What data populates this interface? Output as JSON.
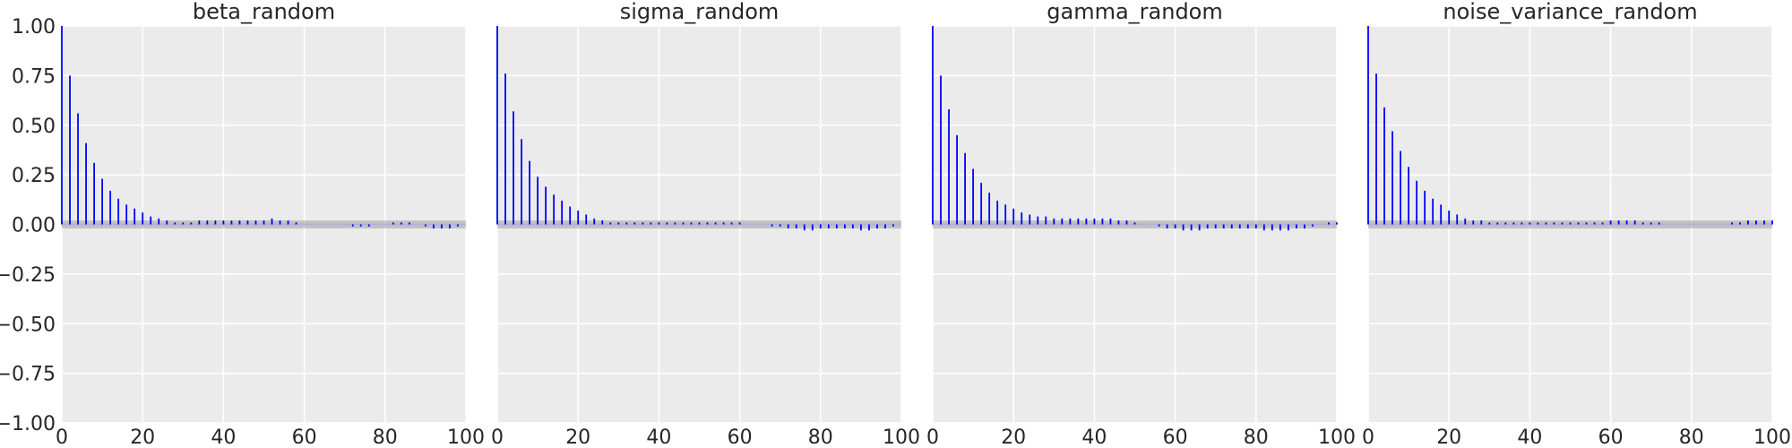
{
  "chart_data": {
    "type": "bar",
    "subtype": "autocorrelation",
    "shared_y_axis": true,
    "grid": true,
    "xlim": [
      0,
      100
    ],
    "ylim": [
      -1.0,
      1.0
    ],
    "x_ticks": [
      0,
      20,
      40,
      60,
      80,
      100
    ],
    "y_ticks": [
      -1.0,
      -0.75,
      -0.5,
      -0.25,
      0.0,
      0.25,
      0.5,
      0.75,
      1.0
    ],
    "x_tick_labels": [
      "0",
      "20",
      "40",
      "60",
      "80",
      "100"
    ],
    "y_tick_labels": [
      "−1.00",
      "−0.75",
      "−0.50",
      "−0.25",
      "0.00",
      "0.25",
      "0.50",
      "0.75",
      "1.00"
    ],
    "confidence_band": [
      -0.02,
      0.02
    ],
    "bar_color": "#0000ff",
    "background_color": "#ebebeb",
    "lags": [
      0,
      2,
      4,
      6,
      8,
      10,
      12,
      14,
      16,
      18,
      20,
      22,
      24,
      26,
      28,
      30,
      32,
      34,
      36,
      38,
      40,
      42,
      44,
      46,
      48,
      50,
      52,
      54,
      56,
      58,
      60,
      62,
      64,
      66,
      68,
      70,
      72,
      74,
      76,
      78,
      80,
      82,
      84,
      86,
      88,
      90,
      92,
      94,
      96,
      98,
      100
    ],
    "panels": [
      {
        "title": "beta_random",
        "values": [
          1.0,
          0.75,
          0.56,
          0.41,
          0.31,
          0.23,
          0.17,
          0.13,
          0.1,
          0.08,
          0.06,
          0.04,
          0.03,
          0.02,
          0.01,
          0.01,
          0.01,
          0.02,
          0.02,
          0.02,
          0.02,
          0.02,
          0.02,
          0.02,
          0.02,
          0.02,
          0.03,
          0.02,
          0.02,
          0.01,
          0.0,
          0.0,
          0.0,
          0.0,
          0.0,
          0.0,
          -0.01,
          -0.01,
          -0.01,
          0.0,
          0.0,
          0.01,
          0.01,
          0.01,
          0.0,
          -0.01,
          -0.02,
          -0.02,
          -0.02,
          -0.01,
          0.0
        ]
      },
      {
        "title": "sigma_random",
        "values": [
          1.0,
          0.76,
          0.57,
          0.43,
          0.32,
          0.24,
          0.19,
          0.15,
          0.12,
          0.09,
          0.07,
          0.05,
          0.03,
          0.02,
          0.01,
          0.01,
          0.01,
          0.01,
          0.01,
          0.01,
          0.01,
          0.01,
          0.01,
          0.01,
          0.01,
          0.01,
          0.01,
          0.01,
          0.01,
          0.01,
          0.01,
          0.0,
          0.0,
          0.0,
          -0.01,
          -0.01,
          -0.02,
          -0.02,
          -0.03,
          -0.03,
          -0.02,
          -0.02,
          -0.02,
          -0.02,
          -0.02,
          -0.03,
          -0.03,
          -0.02,
          -0.02,
          -0.01,
          0.0
        ]
      },
      {
        "title": "gamma_random",
        "values": [
          1.0,
          0.75,
          0.58,
          0.45,
          0.36,
          0.28,
          0.21,
          0.16,
          0.12,
          0.1,
          0.08,
          0.06,
          0.05,
          0.04,
          0.04,
          0.03,
          0.03,
          0.03,
          0.03,
          0.03,
          0.03,
          0.03,
          0.03,
          0.02,
          0.02,
          0.01,
          0.0,
          0.0,
          -0.01,
          -0.02,
          -0.02,
          -0.03,
          -0.03,
          -0.03,
          -0.02,
          -0.02,
          -0.02,
          -0.02,
          -0.02,
          -0.02,
          -0.02,
          -0.03,
          -0.03,
          -0.03,
          -0.03,
          -0.02,
          -0.02,
          -0.01,
          0.0,
          0.01,
          0.01
        ]
      },
      {
        "title": "noise_variance_random",
        "values": [
          1.0,
          0.76,
          0.59,
          0.47,
          0.37,
          0.29,
          0.22,
          0.17,
          0.13,
          0.1,
          0.07,
          0.05,
          0.03,
          0.02,
          0.02,
          0.01,
          0.01,
          0.01,
          0.01,
          0.01,
          0.01,
          0.01,
          0.01,
          0.01,
          0.01,
          0.01,
          0.01,
          0.01,
          0.01,
          0.01,
          0.02,
          0.02,
          0.02,
          0.02,
          0.01,
          0.01,
          0.01,
          0.0,
          0.0,
          0.0,
          0.0,
          0.0,
          0.0,
          0.0,
          0.0,
          0.01,
          0.01,
          0.02,
          0.02,
          0.02,
          0.02
        ]
      }
    ]
  }
}
